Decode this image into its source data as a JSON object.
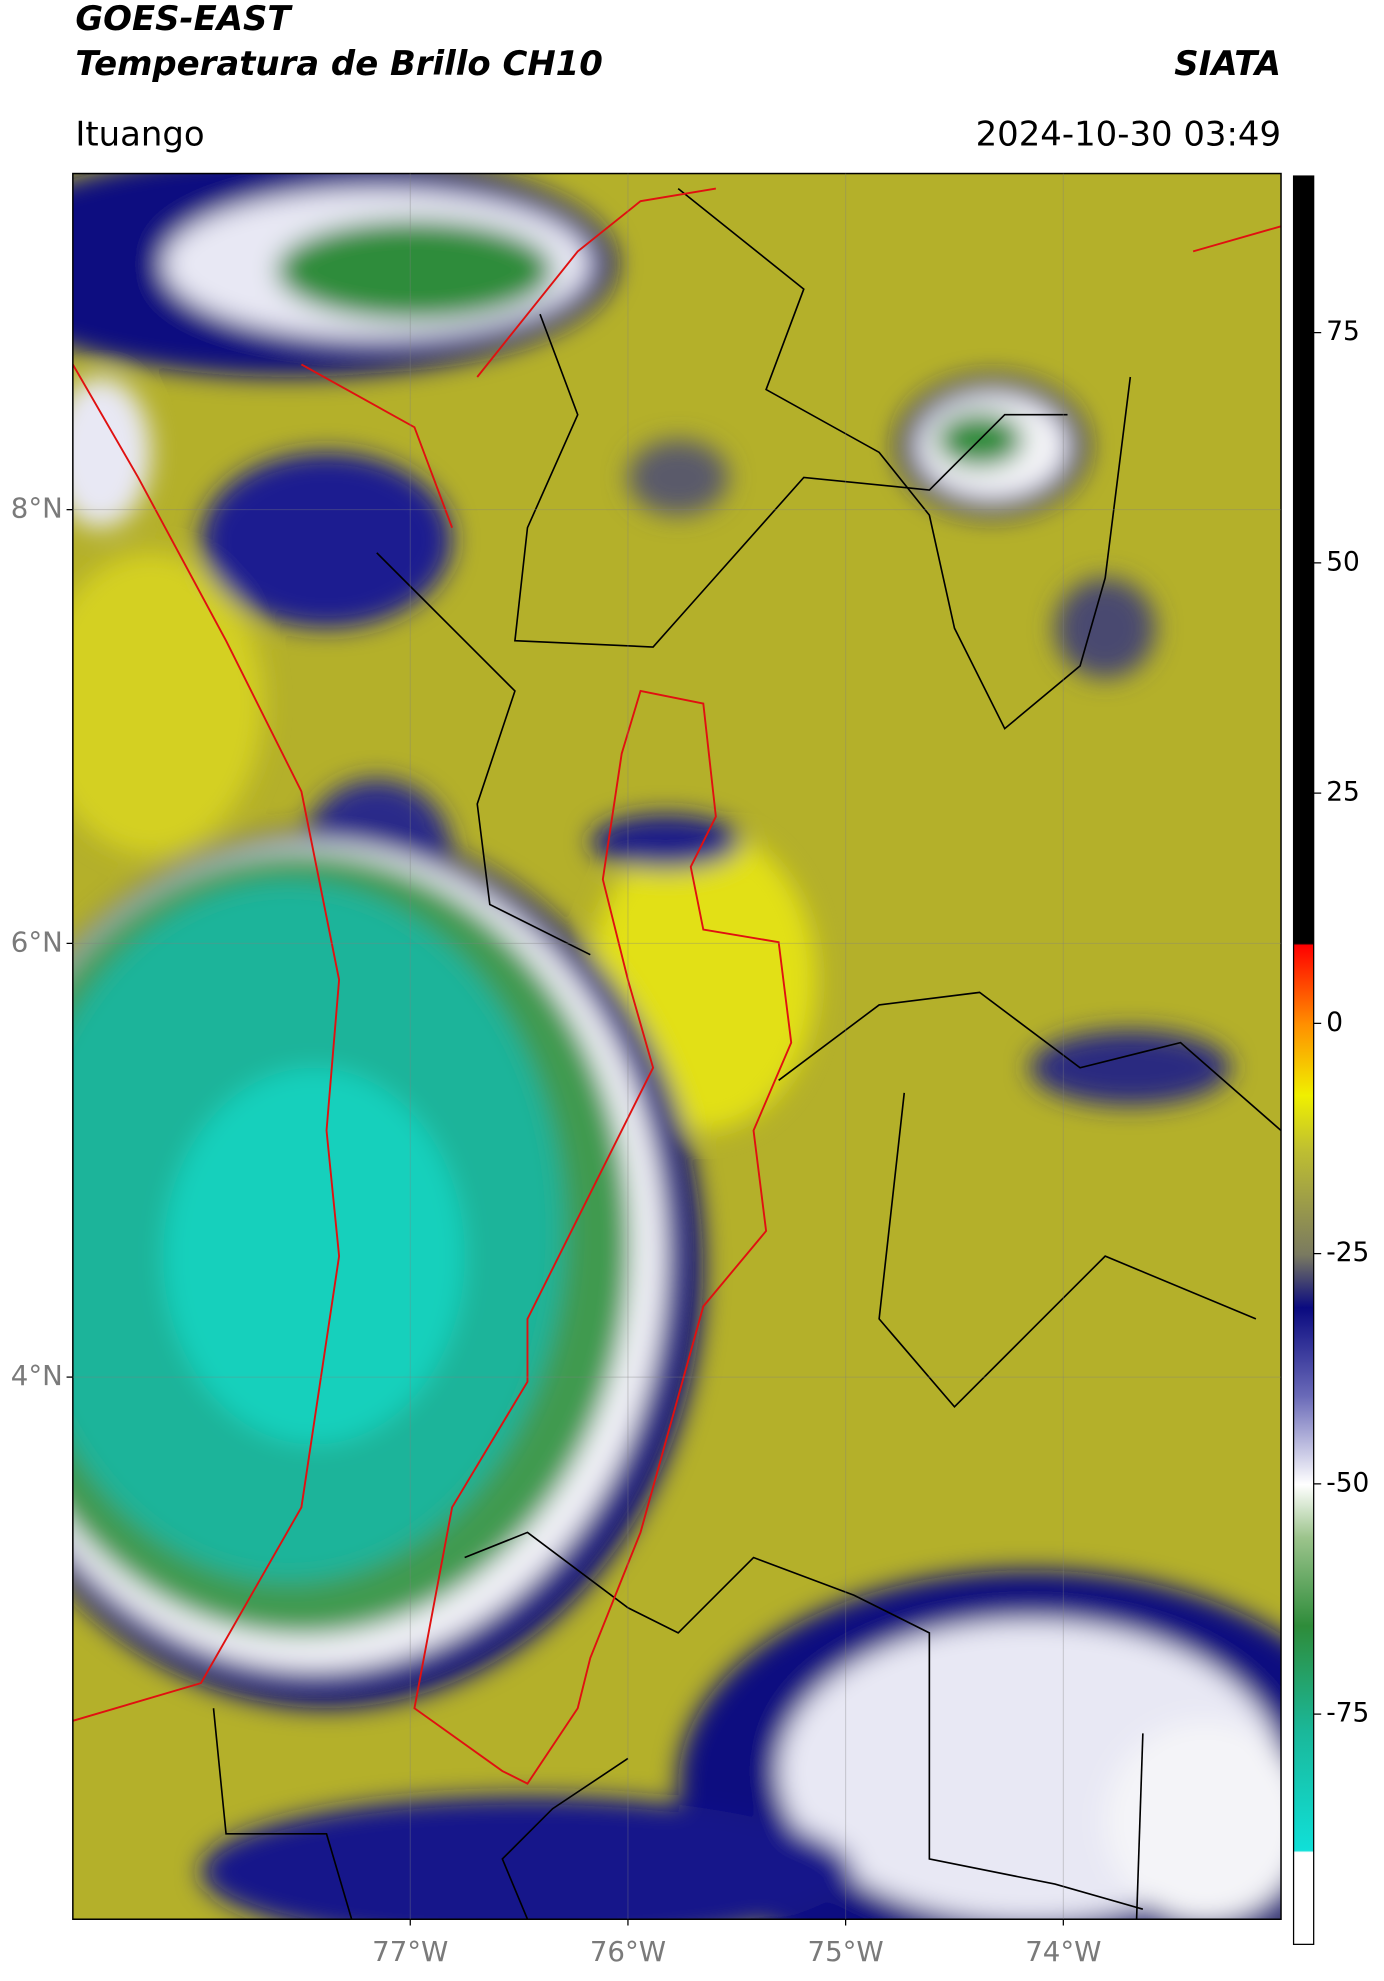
{
  "header": {
    "title": "GOES-EAST",
    "subtitle": "Temperatura de Brillo CH10",
    "brand": "SIATA",
    "location": "Ituango",
    "timestamp": "2024-10-30 03:49"
  },
  "map": {
    "lon_range": [
      -78.55,
      -73.0
    ],
    "lat_range": [
      1.5,
      9.55
    ],
    "lat_ticks": [
      {
        "value": 4,
        "label": "4°N"
      },
      {
        "value": 6,
        "label": "6°N"
      },
      {
        "value": 8,
        "label": "8°N"
      }
    ],
    "lon_ticks": [
      {
        "value": -77,
        "label": "77°W"
      },
      {
        "value": -76,
        "label": "76°W"
      },
      {
        "value": -75,
        "label": "75°W"
      },
      {
        "value": -74,
        "label": "74°W"
      }
    ]
  },
  "colorbar": {
    "range": [
      -100,
      92
    ],
    "ticks": [
      -75,
      -50,
      -25,
      0,
      25,
      50,
      75
    ]
  }
}
